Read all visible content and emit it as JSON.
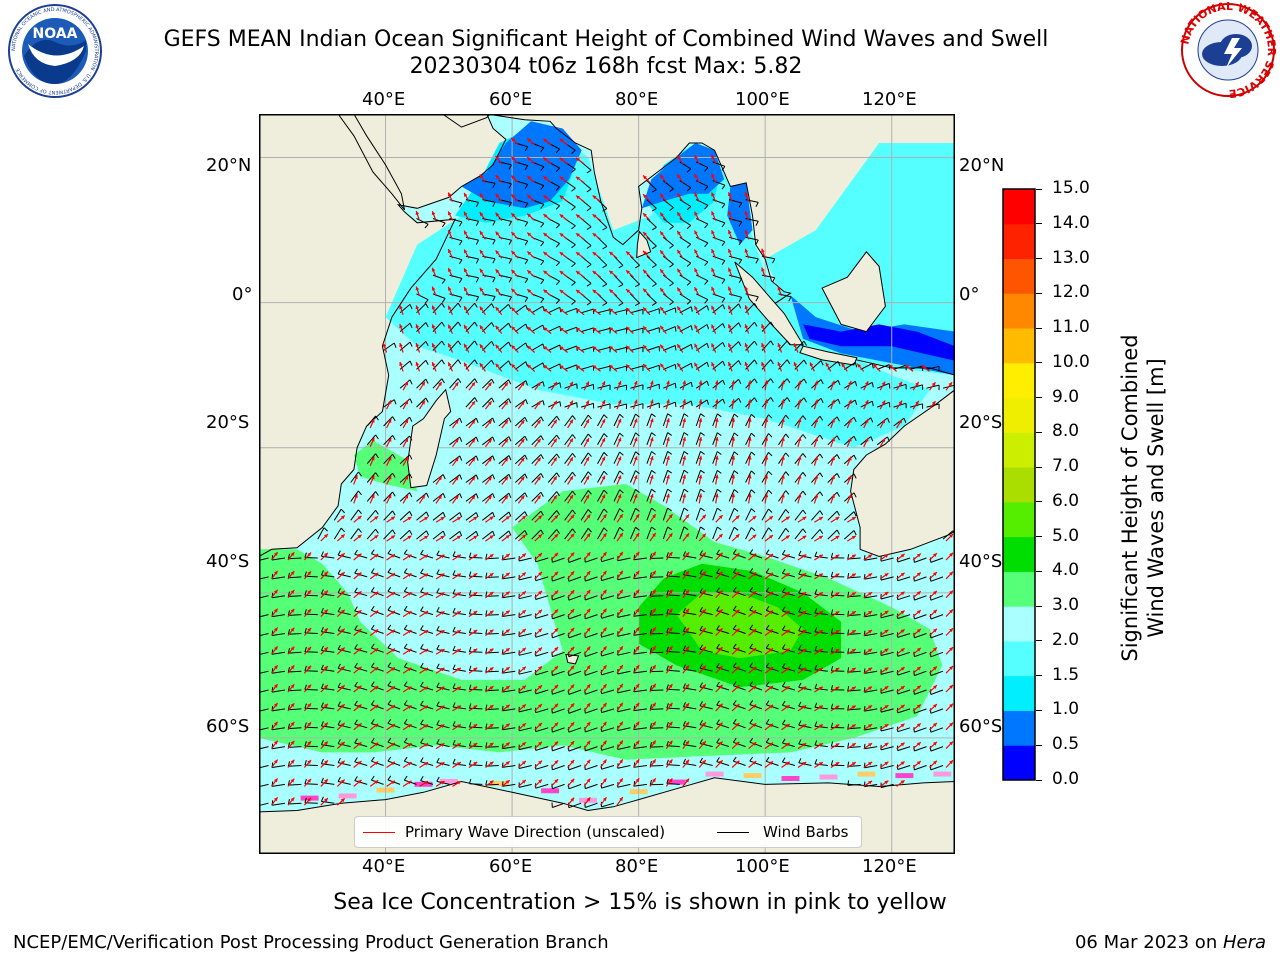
{
  "header": {
    "title": "GEFS MEAN Indian Ocean Significant Height of Combined Wind Waves and Swell",
    "subtitle": "20230304 t06z 168h fcst   Max: 5.82"
  },
  "logos": {
    "left": "NOAA",
    "left_ring_text": "NATIONAL OCEANIC AND ATMOSPHERIC ADMINISTRATION · U.S. DEPARTMENT OF COMMERCE",
    "right_ring_text": "NATIONAL WEATHER SERVICE"
  },
  "map": {
    "lon_range": [
      20,
      130
    ],
    "lat_range": [
      -76,
      26
    ],
    "lon_ticks": [
      "40°E",
      "60°E",
      "80°E",
      "100°E",
      "120°E"
    ],
    "lat_ticks": [
      "20°N",
      "0°",
      "20°S",
      "40°S",
      "60°S"
    ],
    "colors": {
      "land": "#efeedd",
      "ocean_base": "#aaffff",
      "grid": "#b0b0b0"
    },
    "legend": {
      "wave_label": "Primary Wave Direction (unscaled)",
      "wind_label": "Wind Barbs",
      "wave_color": "#ff0000",
      "wind_color": "#000000"
    }
  },
  "colorbar": {
    "label_line1": "Significant Height of Combined",
    "label_line2": "Wind Waves and Swell [m]",
    "ticks": [
      "0.0",
      "0.5",
      "1.0",
      "1.5",
      "2.0",
      "3.0",
      "4.0",
      "5.0",
      "6.0",
      "7.0",
      "8.0",
      "9.0",
      "10.0",
      "11.0",
      "12.0",
      "13.0",
      "14.0",
      "15.0"
    ],
    "colors": [
      "#0000ff",
      "#0077ff",
      "#00eeff",
      "#55ffff",
      "#aaffff",
      "#55ff77",
      "#00dd00",
      "#55ee00",
      "#aadd00",
      "#ccee00",
      "#eeee00",
      "#ffee00",
      "#ffbb00",
      "#ff8800",
      "#ff5500",
      "#ff2200",
      "#ff0000"
    ]
  },
  "footer": {
    "ice_note": "Sea Ice Concentration > 15% is shown in pink to yellow",
    "left": "NCEP/EMC/Verification Post Processing Product Generation Branch",
    "right_date": "06 Mar 2023 on ",
    "right_host": "Hera"
  }
}
